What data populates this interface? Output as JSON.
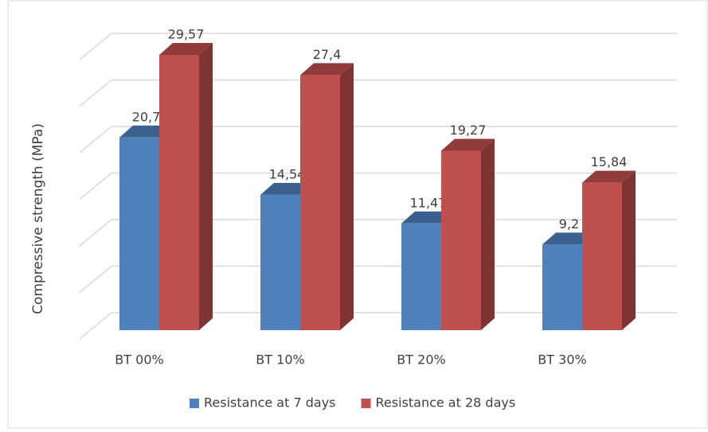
{
  "chart_data": {
    "type": "bar3d",
    "y_label": "Compressive  strength (MPa)",
    "categories": [
      "BT 00%",
      "BT 10%",
      "BT 20%",
      "BT 30%"
    ],
    "series": [
      {
        "name": "Resistance at 7 days",
        "color": "#4f81bd",
        "values": [
          20.7,
          14.54,
          11.47,
          9.2
        ],
        "value_labels": [
          "20,7",
          "14,54",
          "11,47",
          "9,2"
        ]
      },
      {
        "name": "Resistance at 28 days",
        "color": "#c0504d",
        "values": [
          29.57,
          27.4,
          19.27,
          15.84
        ],
        "value_labels": [
          "29,57",
          "27,4",
          "19,27",
          "15,84"
        ]
      }
    ],
    "ylim": [
      0,
      30
    ],
    "yticks": [
      0,
      5,
      10,
      15,
      20,
      25,
      30
    ],
    "grid": true,
    "legend": "bottom"
  }
}
